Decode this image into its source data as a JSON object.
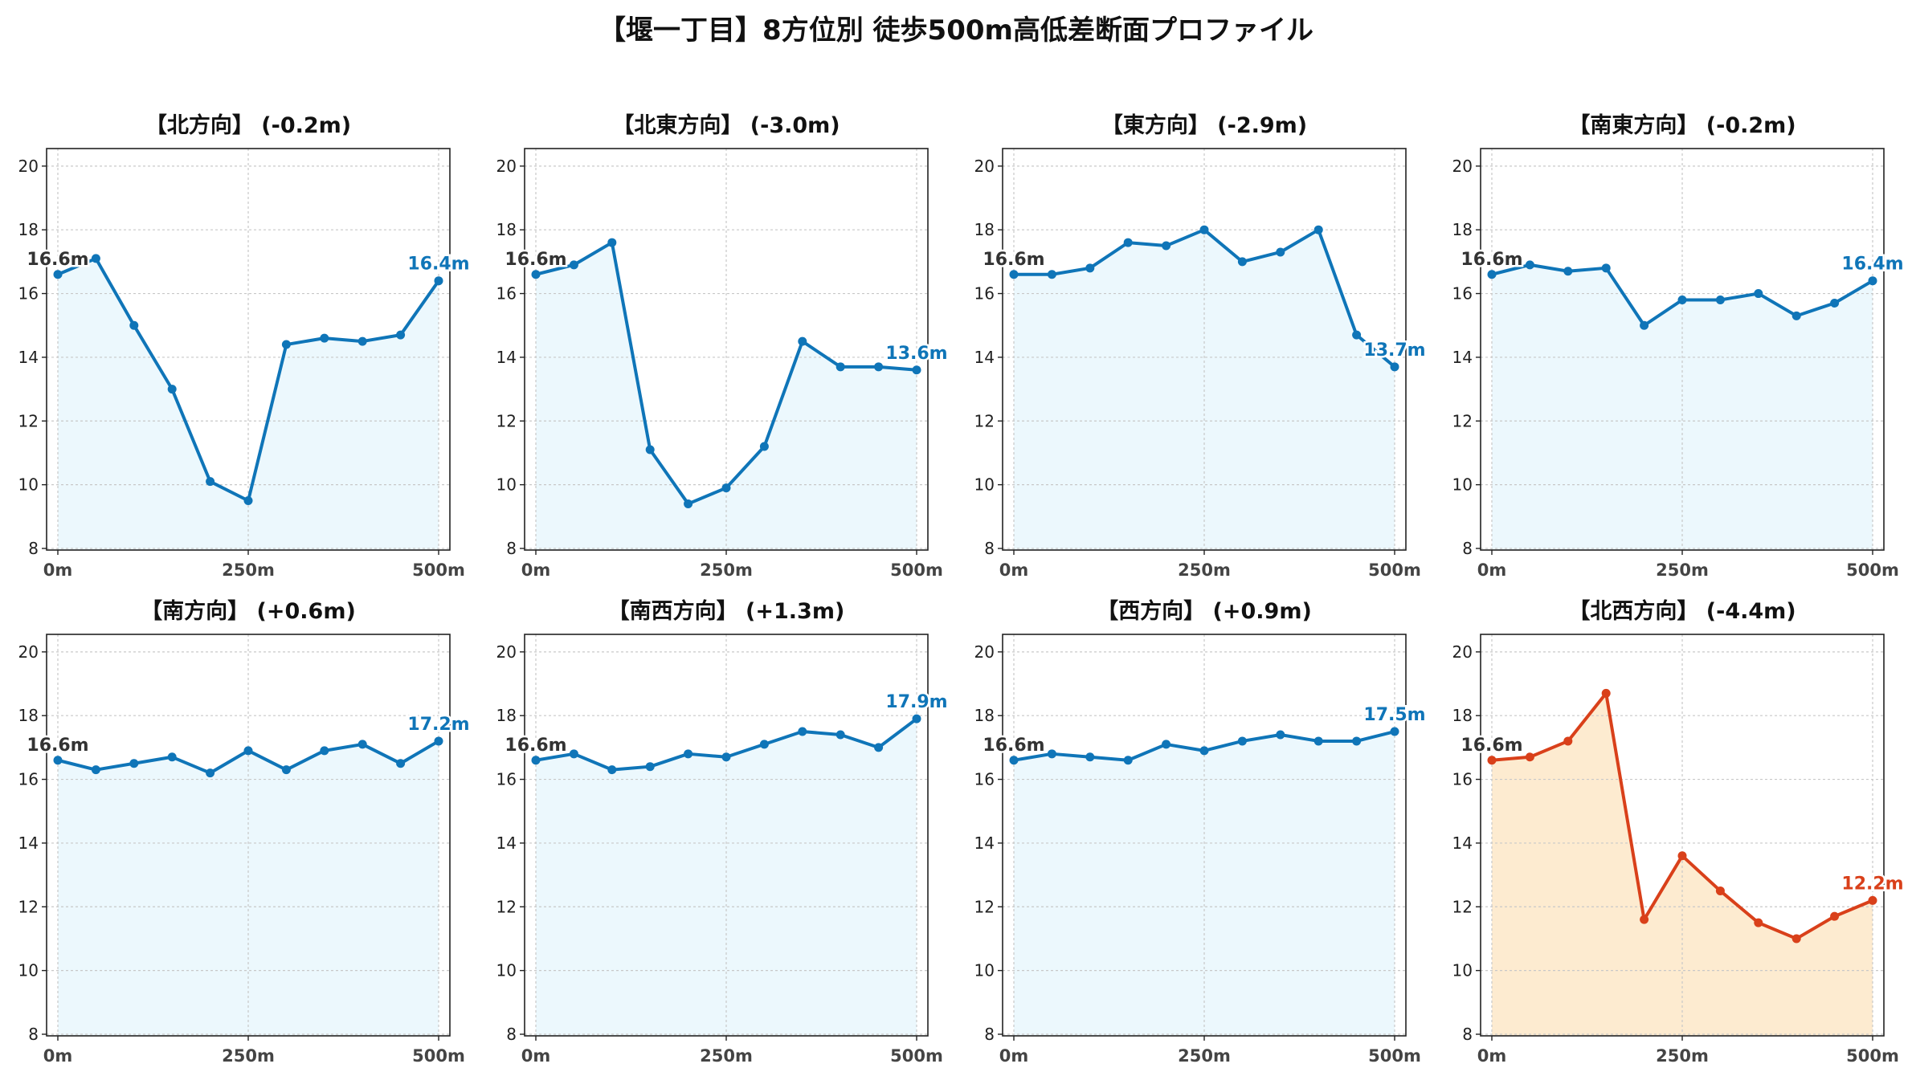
{
  "title": "【堰一丁目】8方位別 徒歩500m高低差断面プロファイル",
  "colors": {
    "normal_line": "#0f75b8",
    "normal_fill": "#ecf8fd",
    "alert_line": "#d9401a",
    "alert_fill": "#fdebd0",
    "start_label": "#333333",
    "grid": "#c8c8c8"
  },
  "chart_data": [
    {
      "type": "area",
      "title": "【北方向】 (-0.2m)",
      "highlight": false,
      "x": [
        0,
        50,
        100,
        150,
        200,
        250,
        300,
        350,
        400,
        450,
        500
      ],
      "values": [
        16.6,
        17.1,
        15.0,
        13.0,
        10.1,
        9.5,
        14.4,
        14.6,
        14.5,
        14.7,
        16.4
      ],
      "start_label": "16.6m",
      "end_label": "16.4m",
      "xticks": [
        "0m",
        "250m",
        "500m"
      ],
      "yticks": [
        "8",
        "10",
        "12",
        "14",
        "16",
        "18",
        "20"
      ],
      "ylim": [
        8,
        20.5
      ],
      "xlim": [
        0,
        500
      ],
      "grid": true
    },
    {
      "type": "area",
      "title": "【北東方向】 (-3.0m)",
      "highlight": false,
      "x": [
        0,
        50,
        100,
        150,
        200,
        250,
        300,
        350,
        400,
        450,
        500
      ],
      "values": [
        16.6,
        16.9,
        17.6,
        11.1,
        9.4,
        9.9,
        11.2,
        14.5,
        13.7,
        13.7,
        13.6
      ],
      "start_label": "16.6m",
      "end_label": "13.6m",
      "xticks": [
        "0m",
        "250m",
        "500m"
      ],
      "yticks": [
        "8",
        "10",
        "12",
        "14",
        "16",
        "18",
        "20"
      ],
      "ylim": [
        8,
        20.5
      ],
      "xlim": [
        0,
        500
      ],
      "grid": true
    },
    {
      "type": "area",
      "title": "【東方向】 (-2.9m)",
      "highlight": false,
      "x": [
        0,
        50,
        100,
        150,
        200,
        250,
        300,
        350,
        400,
        450,
        500
      ],
      "values": [
        16.6,
        16.6,
        16.8,
        17.6,
        17.5,
        18.0,
        17.0,
        17.3,
        18.0,
        14.7,
        13.7
      ],
      "start_label": "16.6m",
      "end_label": "13.7m",
      "xticks": [
        "0m",
        "250m",
        "500m"
      ],
      "yticks": [
        "8",
        "10",
        "12",
        "14",
        "16",
        "18",
        "20"
      ],
      "ylim": [
        8,
        20.5
      ],
      "xlim": [
        0,
        500
      ],
      "grid": true
    },
    {
      "type": "area",
      "title": "【南東方向】 (-0.2m)",
      "highlight": false,
      "x": [
        0,
        50,
        100,
        150,
        200,
        250,
        300,
        350,
        400,
        450,
        500
      ],
      "values": [
        16.6,
        16.9,
        16.7,
        16.8,
        15.0,
        15.8,
        15.8,
        16.0,
        15.3,
        15.7,
        16.4
      ],
      "start_label": "16.6m",
      "end_label": "16.4m",
      "xticks": [
        "0m",
        "250m",
        "500m"
      ],
      "yticks": [
        "8",
        "10",
        "12",
        "14",
        "16",
        "18",
        "20"
      ],
      "ylim": [
        8,
        20.5
      ],
      "xlim": [
        0,
        500
      ],
      "grid": true
    },
    {
      "type": "area",
      "title": "【南方向】 (+0.6m)",
      "highlight": false,
      "x": [
        0,
        50,
        100,
        150,
        200,
        250,
        300,
        350,
        400,
        450,
        500
      ],
      "values": [
        16.6,
        16.3,
        16.5,
        16.7,
        16.2,
        16.9,
        16.3,
        16.9,
        17.1,
        16.5,
        17.2
      ],
      "start_label": "16.6m",
      "end_label": "17.2m",
      "xticks": [
        "0m",
        "250m",
        "500m"
      ],
      "yticks": [
        "8",
        "10",
        "12",
        "14",
        "16",
        "18",
        "20"
      ],
      "ylim": [
        8,
        20.5
      ],
      "xlim": [
        0,
        500
      ],
      "grid": true
    },
    {
      "type": "area",
      "title": "【南西方向】 (+1.3m)",
      "highlight": false,
      "x": [
        0,
        50,
        100,
        150,
        200,
        250,
        300,
        350,
        400,
        450,
        500
      ],
      "values": [
        16.6,
        16.8,
        16.3,
        16.4,
        16.8,
        16.7,
        17.1,
        17.5,
        17.4,
        17.0,
        17.9
      ],
      "start_label": "16.6m",
      "end_label": "17.9m",
      "xticks": [
        "0m",
        "250m",
        "500m"
      ],
      "yticks": [
        "8",
        "10",
        "12",
        "14",
        "16",
        "18",
        "20"
      ],
      "ylim": [
        8,
        20.5
      ],
      "xlim": [
        0,
        500
      ],
      "grid": true
    },
    {
      "type": "area",
      "title": "【西方向】 (+0.9m)",
      "highlight": false,
      "x": [
        0,
        50,
        100,
        150,
        200,
        250,
        300,
        350,
        400,
        450,
        500
      ],
      "values": [
        16.6,
        16.8,
        16.7,
        16.6,
        17.1,
        16.9,
        17.2,
        17.4,
        17.2,
        17.2,
        17.5
      ],
      "start_label": "16.6m",
      "end_label": "17.5m",
      "xticks": [
        "0m",
        "250m",
        "500m"
      ],
      "yticks": [
        "8",
        "10",
        "12",
        "14",
        "16",
        "18",
        "20"
      ],
      "ylim": [
        8,
        20.5
      ],
      "xlim": [
        0,
        500
      ],
      "grid": true
    },
    {
      "type": "area",
      "title": "【北西方向】 (-4.4m)",
      "highlight": true,
      "x": [
        0,
        50,
        100,
        150,
        200,
        250,
        300,
        350,
        400,
        450,
        500
      ],
      "values": [
        16.6,
        16.7,
        17.2,
        18.7,
        11.6,
        13.6,
        12.5,
        11.5,
        11.0,
        11.7,
        12.2
      ],
      "start_label": "16.6m",
      "end_label": "12.2m",
      "xticks": [
        "0m",
        "250m",
        "500m"
      ],
      "yticks": [
        "8",
        "10",
        "12",
        "14",
        "16",
        "18",
        "20"
      ],
      "ylim": [
        8,
        20.5
      ],
      "xlim": [
        0,
        500
      ],
      "grid": true
    }
  ]
}
